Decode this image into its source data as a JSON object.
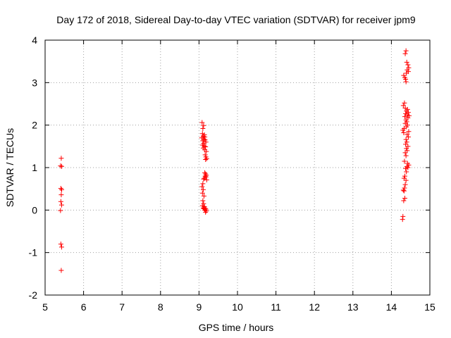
{
  "chart_data": {
    "type": "scatter",
    "title": "Day 172 of 2018, Sidereal Day-to-day VTEC variation (SDTVAR) for receiver jpm9",
    "xlabel": "GPS time / hours",
    "ylabel": "SDTVAR / TECUs",
    "xlim": [
      5,
      15
    ],
    "ylim": [
      -2,
      4
    ],
    "xticks": [
      5,
      6,
      7,
      8,
      9,
      10,
      11,
      12,
      13,
      14,
      15
    ],
    "yticks": [
      -2,
      -1,
      0,
      1,
      2,
      3,
      4
    ],
    "grid": true,
    "marker": "+",
    "marker_color": "#ff0000",
    "series": [
      {
        "name": "SDTVAR",
        "points": [
          [
            5.42,
            1.22
          ],
          [
            5.4,
            1.04
          ],
          [
            5.43,
            1.03
          ],
          [
            5.41,
            0.51
          ],
          [
            5.43,
            0.48
          ],
          [
            5.42,
            0.36
          ],
          [
            5.41,
            0.2
          ],
          [
            5.43,
            0.12
          ],
          [
            5.4,
            -0.01
          ],
          [
            5.41,
            -0.8
          ],
          [
            5.43,
            -0.87
          ],
          [
            5.42,
            -1.42
          ],
          [
            9.08,
            2.06
          ],
          [
            9.12,
            1.99
          ],
          [
            9.1,
            1.92
          ],
          [
            9.09,
            1.8
          ],
          [
            9.14,
            1.77
          ],
          [
            9.11,
            1.74
          ],
          [
            9.15,
            1.72
          ],
          [
            9.07,
            1.7
          ],
          [
            9.13,
            1.67
          ],
          [
            9.16,
            1.65
          ],
          [
            9.1,
            1.63
          ],
          [
            9.18,
            1.6
          ],
          [
            9.12,
            1.57
          ],
          [
            9.09,
            1.53
          ],
          [
            9.14,
            1.51
          ],
          [
            9.17,
            1.49
          ],
          [
            9.11,
            1.46
          ],
          [
            9.15,
            1.42
          ],
          [
            9.19,
            1.38
          ],
          [
            9.16,
            1.3
          ],
          [
            9.18,
            1.25
          ],
          [
            9.2,
            1.21
          ],
          [
            9.17,
            1.19
          ],
          [
            9.15,
            0.88
          ],
          [
            9.17,
            0.85
          ],
          [
            9.19,
            0.82
          ],
          [
            9.16,
            0.8
          ],
          [
            9.18,
            0.78
          ],
          [
            9.14,
            0.75
          ],
          [
            9.12,
            0.73
          ],
          [
            9.2,
            0.71
          ],
          [
            9.1,
            0.62
          ],
          [
            9.08,
            0.55
          ],
          [
            9.11,
            0.48
          ],
          [
            9.09,
            0.4
          ],
          [
            9.13,
            0.33
          ],
          [
            9.1,
            0.22
          ],
          [
            9.12,
            0.15
          ],
          [
            9.09,
            0.1
          ],
          [
            9.14,
            0.08
          ],
          [
            9.11,
            0.05
          ],
          [
            9.16,
            0.04
          ],
          [
            9.13,
            0.03
          ],
          [
            9.18,
            0.02
          ],
          [
            9.15,
            0.0
          ],
          [
            9.19,
            -0.02
          ],
          [
            9.17,
            -0.05
          ],
          [
            14.38,
            3.75
          ],
          [
            14.36,
            3.68
          ],
          [
            14.4,
            3.48
          ],
          [
            14.43,
            3.42
          ],
          [
            14.45,
            3.35
          ],
          [
            14.41,
            3.3
          ],
          [
            14.44,
            3.26
          ],
          [
            14.39,
            3.22
          ],
          [
            14.32,
            3.17
          ],
          [
            14.35,
            3.12
          ],
          [
            14.37,
            3.08
          ],
          [
            14.38,
            3.02
          ],
          [
            14.34,
            2.52
          ],
          [
            14.31,
            2.46
          ],
          [
            14.36,
            2.4
          ],
          [
            14.42,
            2.37
          ],
          [
            14.39,
            2.33
          ],
          [
            14.44,
            2.3
          ],
          [
            14.37,
            2.27
          ],
          [
            14.41,
            2.24
          ],
          [
            14.46,
            2.22
          ],
          [
            14.35,
            2.2
          ],
          [
            14.43,
            2.17
          ],
          [
            14.38,
            2.12
          ],
          [
            14.4,
            2.08
          ],
          [
            14.36,
            2.04
          ],
          [
            14.42,
            2.0
          ],
          [
            14.39,
            1.96
          ],
          [
            14.33,
            1.92
          ],
          [
            14.3,
            1.88
          ],
          [
            14.45,
            1.85
          ],
          [
            14.32,
            1.82
          ],
          [
            14.41,
            1.78
          ],
          [
            14.44,
            1.72
          ],
          [
            14.38,
            1.66
          ],
          [
            14.4,
            1.6
          ],
          [
            14.37,
            1.55
          ],
          [
            14.43,
            1.5
          ],
          [
            14.39,
            1.45
          ],
          [
            14.41,
            1.4
          ],
          [
            14.36,
            1.35
          ],
          [
            14.38,
            1.28
          ],
          [
            14.34,
            1.15
          ],
          [
            14.42,
            1.1
          ],
          [
            14.45,
            1.06
          ],
          [
            14.4,
            1.02
          ],
          [
            14.43,
            1.0
          ],
          [
            14.37,
            0.98
          ],
          [
            14.39,
            0.9
          ],
          [
            14.35,
            0.8
          ],
          [
            14.33,
            0.75
          ],
          [
            14.38,
            0.7
          ],
          [
            14.36,
            0.6
          ],
          [
            14.34,
            0.52
          ],
          [
            14.31,
            0.47
          ],
          [
            14.33,
            0.45
          ],
          [
            14.35,
            0.28
          ],
          [
            14.32,
            0.22
          ],
          [
            14.3,
            -0.15
          ],
          [
            14.29,
            -0.22
          ]
        ]
      }
    ]
  }
}
